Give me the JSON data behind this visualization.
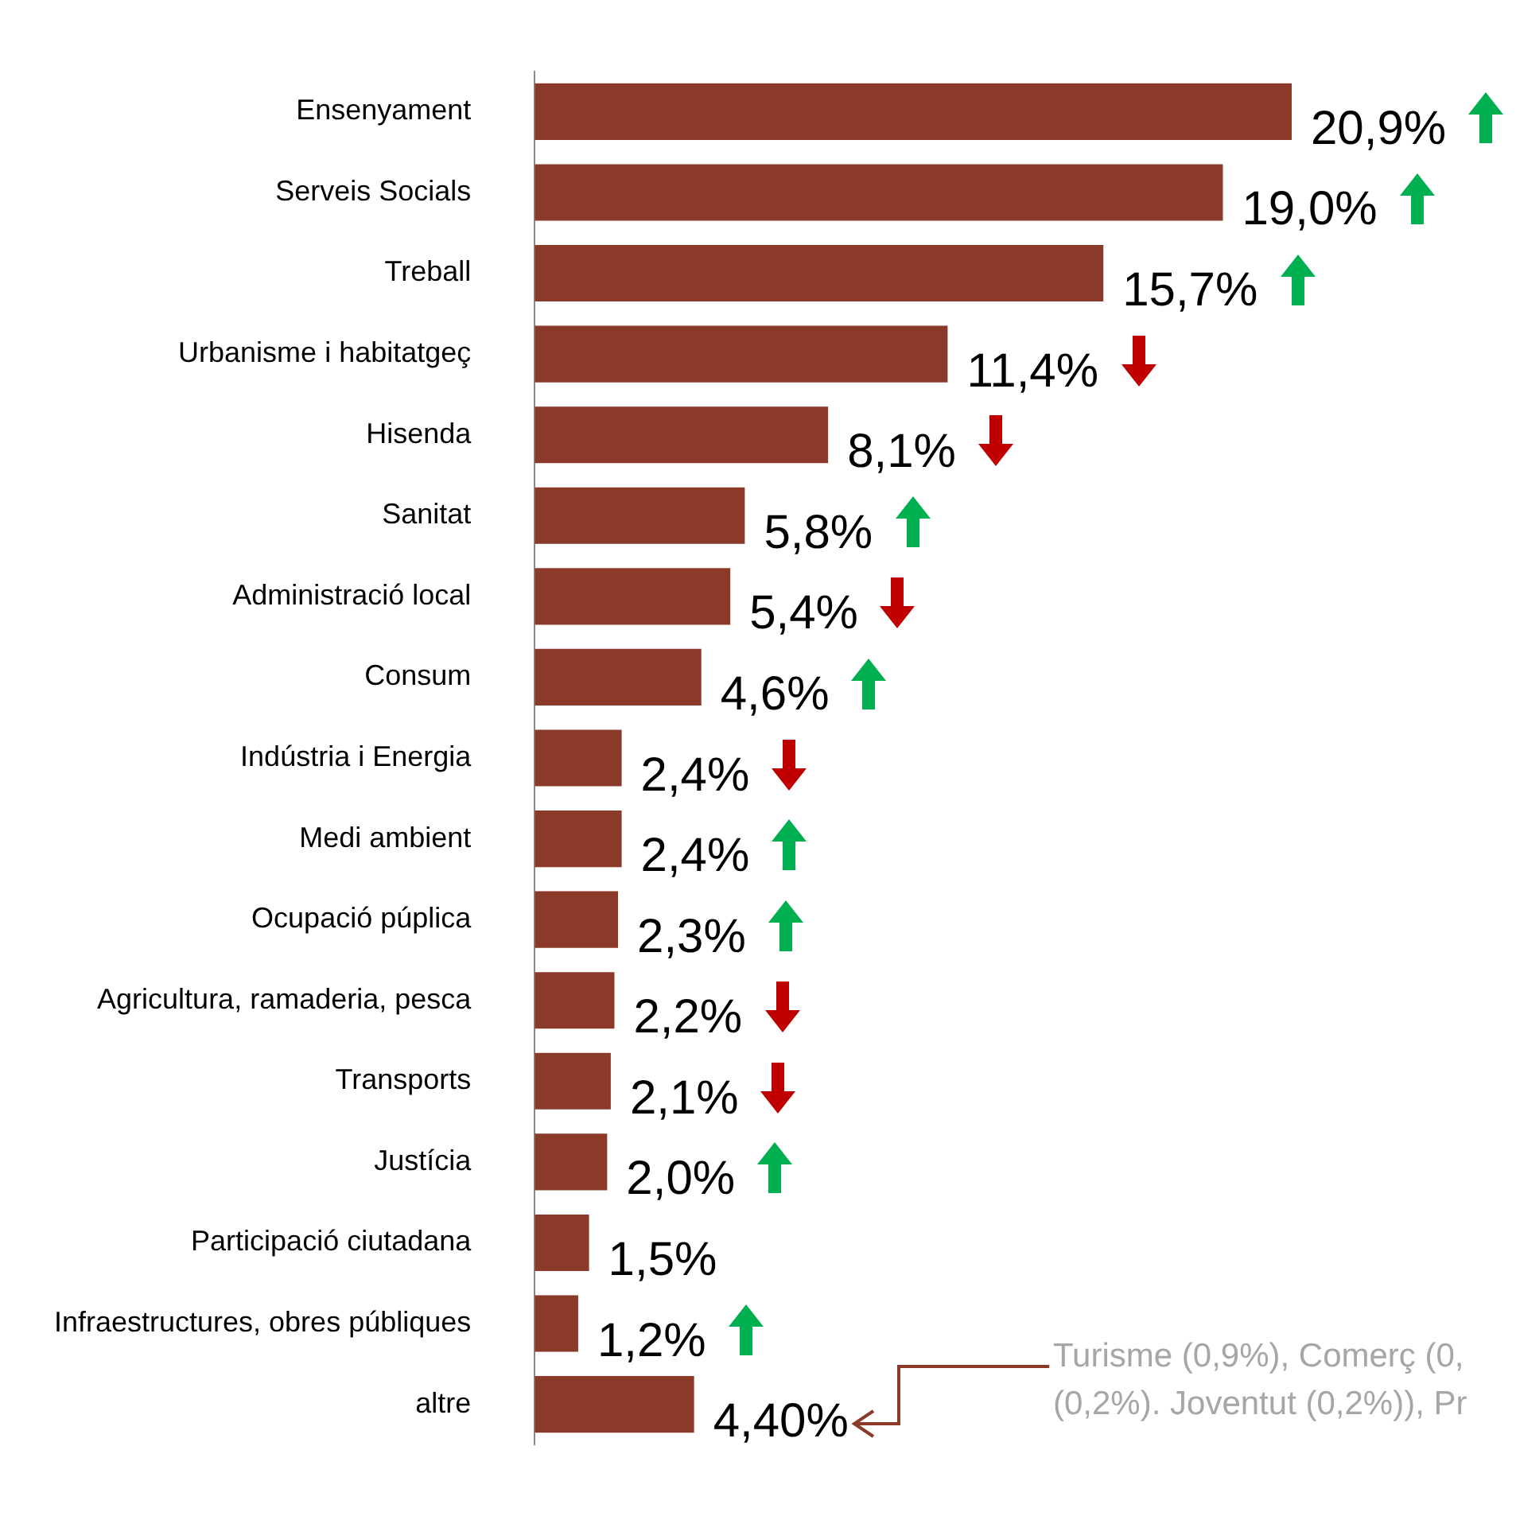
{
  "chart_data": {
    "type": "bar",
    "orientation": "horizontal",
    "categories": [
      "Ensenyament",
      "Serveis Socials",
      "Treball",
      "Urbanisme i habitatgeç",
      "Hisenda",
      "Sanitat",
      "Administració local",
      "Consum",
      "Indústria i Energia",
      "Medi ambient",
      "Ocupació púplica",
      "Agricultura, ramaderia, pesca",
      "Transports",
      "Justícia",
      "Participació ciutadana",
      "Infraestructures, obres públiques",
      "altre"
    ],
    "values": [
      20.9,
      19.0,
      15.7,
      11.4,
      8.1,
      5.8,
      5.4,
      4.6,
      2.4,
      2.4,
      2.3,
      2.2,
      2.1,
      2.0,
      1.5,
      1.2,
      4.4
    ],
    "value_labels": [
      "20,9%",
      "19,0%",
      "15,7%",
      "11,4%",
      "8,1%",
      "5,8%",
      "5,4%",
      "4,6%",
      "2,4%",
      "2,4%",
      "2,3%",
      "2,2%",
      "2,1%",
      "2,0%",
      "1,5%",
      "1,2%",
      "4,40%"
    ],
    "color": "#8b3a2a",
    "tick_labels": "y",
    "grid": false,
    "legend": false,
    "annotations": [
      "Turisme (0,9%), Comerç (0,",
      "(0,2%). Joventut (0,2%)), Pr"
    ]
  }
}
